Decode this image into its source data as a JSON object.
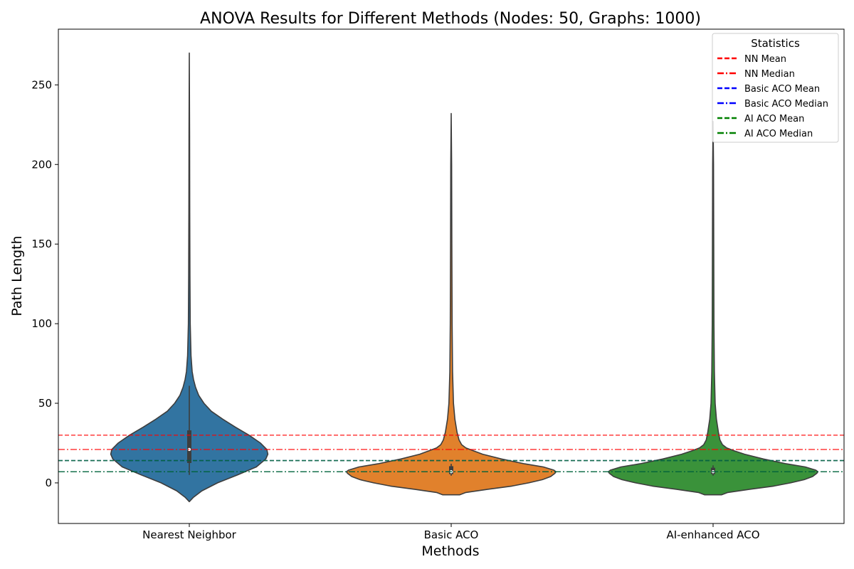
{
  "chart_data": {
    "type": "violin",
    "title": "ANOVA Results for Different Methods (Nodes: 50, Graphs: 1000)",
    "xlabel": "Methods",
    "ylabel": "Path Length",
    "ylim": [
      -25.5,
      285
    ],
    "yticks": [
      0,
      50,
      100,
      150,
      200,
      250
    ],
    "categories": [
      "Nearest Neighbor",
      "Basic ACO",
      "AI-enhanced ACO"
    ],
    "violins": [
      {
        "name": "Nearest Neighbor",
        "color": "#3274a1",
        "min": -11.8,
        "max": 270,
        "q1": 12.5,
        "median": 21,
        "q3": 33,
        "whisker_low": 5,
        "whisker_high": 61,
        "profile": [
          [
            -11.8,
            0.0
          ],
          [
            -9,
            0.04
          ],
          [
            -5,
            0.12
          ],
          [
            0,
            0.27
          ],
          [
            5,
            0.46
          ],
          [
            10,
            0.64
          ],
          [
            15,
            0.73
          ],
          [
            18,
            0.75
          ],
          [
            21,
            0.74
          ],
          [
            25,
            0.68
          ],
          [
            30,
            0.57
          ],
          [
            35,
            0.44
          ],
          [
            40,
            0.32
          ],
          [
            45,
            0.21
          ],
          [
            50,
            0.14
          ],
          [
            55,
            0.09
          ],
          [
            60,
            0.06
          ],
          [
            65,
            0.04
          ],
          [
            70,
            0.027
          ],
          [
            80,
            0.016
          ],
          [
            100,
            0.009
          ],
          [
            130,
            0.006
          ],
          [
            170,
            0.004
          ],
          [
            220,
            0.003
          ],
          [
            270,
            0.0
          ]
        ]
      },
      {
        "name": "Basic ACO",
        "color": "#e1812c",
        "min": -7.5,
        "max": 232,
        "q1": 5.5,
        "median": 7,
        "q3": 10.5,
        "whisker_low": 4.5,
        "whisker_high": 12,
        "profile": [
          [
            -7.5,
            0.08
          ],
          [
            -6,
            0.14
          ],
          [
            -4,
            0.35
          ],
          [
            -2,
            0.58
          ],
          [
            0,
            0.74
          ],
          [
            2,
            0.87
          ],
          [
            4,
            0.95
          ],
          [
            6,
            0.99
          ],
          [
            7,
            1.0
          ],
          [
            8,
            0.98
          ],
          [
            10,
            0.88
          ],
          [
            12,
            0.7
          ],
          [
            15,
            0.48
          ],
          [
            18,
            0.3
          ],
          [
            20,
            0.22
          ],
          [
            22,
            0.14
          ],
          [
            24,
            0.1
          ],
          [
            27,
            0.075
          ],
          [
            32,
            0.055
          ],
          [
            40,
            0.035
          ],
          [
            50,
            0.022
          ],
          [
            70,
            0.013
          ],
          [
            100,
            0.009
          ],
          [
            150,
            0.006
          ],
          [
            200,
            0.004
          ],
          [
            232,
            0.0
          ]
        ]
      },
      {
        "name": "AI-enhanced ACO",
        "color": "#3a923a",
        "min": -7.5,
        "max": 227,
        "q1": 5.5,
        "median": 7,
        "q3": 9.5,
        "whisker_low": 4.5,
        "whisker_high": 11,
        "profile": [
          [
            -7.5,
            0.08
          ],
          [
            -6,
            0.14
          ],
          [
            -4,
            0.35
          ],
          [
            -2,
            0.58
          ],
          [
            0,
            0.74
          ],
          [
            2,
            0.87
          ],
          [
            4,
            0.95
          ],
          [
            6,
            0.99
          ],
          [
            7,
            1.0
          ],
          [
            8,
            0.98
          ],
          [
            10,
            0.88
          ],
          [
            12,
            0.7
          ],
          [
            15,
            0.48
          ],
          [
            18,
            0.3
          ],
          [
            20,
            0.21
          ],
          [
            22,
            0.13
          ],
          [
            24,
            0.09
          ],
          [
            27,
            0.065
          ],
          [
            32,
            0.05
          ],
          [
            40,
            0.032
          ],
          [
            50,
            0.02
          ],
          [
            70,
            0.012
          ],
          [
            100,
            0.008
          ],
          [
            150,
            0.006
          ],
          [
            200,
            0.004
          ],
          [
            227,
            0.0
          ]
        ]
      }
    ],
    "reference_lines": [
      {
        "name": "NN Mean",
        "value": 30,
        "color": "#ff0000",
        "style": "dashed"
      },
      {
        "name": "NN Median",
        "value": 21,
        "color": "#ff0000",
        "style": "dashdot"
      },
      {
        "name": "Basic ACO Mean",
        "value": 14,
        "color": "#0000ff",
        "style": "dashed"
      },
      {
        "name": "Basic ACO Median",
        "value": 7,
        "color": "#0000ff",
        "style": "dashdot"
      },
      {
        "name": "AI ACO Mean",
        "value": 14,
        "color": "#008000",
        "style": "dashed"
      },
      {
        "name": "AI ACO Median",
        "value": 7,
        "color": "#008000",
        "style": "dashdot"
      }
    ],
    "legend": {
      "title": "Statistics",
      "placement": "top-right"
    },
    "grid": false
  }
}
